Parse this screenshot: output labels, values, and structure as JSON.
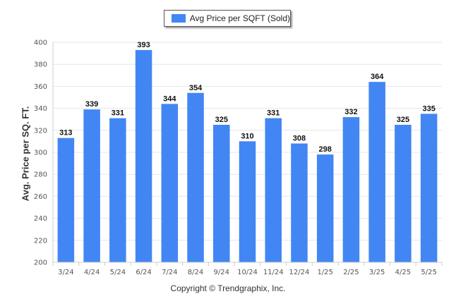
{
  "chart_data": {
    "type": "bar",
    "categories": [
      "3/24",
      "4/24",
      "5/24",
      "6/24",
      "7/24",
      "8/24",
      "9/24",
      "10/24",
      "11/24",
      "12/24",
      "1/25",
      "2/25",
      "3/25",
      "4/25",
      "5/25"
    ],
    "series": [
      {
        "name": "Avg Price per SQFT (Sold)",
        "values": [
          313,
          339,
          331,
          393,
          344,
          354,
          325,
          310,
          331,
          308,
          298,
          332,
          364,
          325,
          335
        ]
      }
    ],
    "ylabel": "Avg. Price per SQ. FT.",
    "ylim": [
      200,
      400
    ],
    "yticks": [
      200,
      220,
      240,
      260,
      280,
      300,
      320,
      340,
      360,
      380,
      400
    ],
    "grid": true,
    "legend": "top-center",
    "bar_color": "#4286f4",
    "show_data_labels": true
  },
  "footer": {
    "copyright": "Copyright © Trendgraphix, Inc."
  }
}
